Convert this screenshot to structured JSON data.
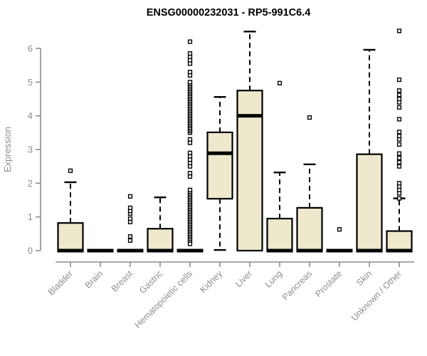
{
  "chart_data": {
    "type": "boxplot",
    "title": "ENSG00000232031 - RP5-991C6.4",
    "ylabel": "Expression",
    "xlabel": "",
    "ylim": [
      0,
      6
    ],
    "yticks": [
      "0",
      "1",
      "2",
      "3",
      "4",
      "5",
      "6"
    ],
    "legend": "none",
    "grid": false,
    "categories": [
      "Bladder",
      "Brain",
      "Breast",
      "Gastric",
      "Hematopoietic cells",
      "Kidney",
      "Liver",
      "Lung",
      "Pancreas",
      "Prostate",
      "Skin",
      "Unknown / Other"
    ],
    "boxes": [
      {
        "label": "Bladder",
        "low": 0,
        "q1": 0,
        "median": 0,
        "q3": 0.82,
        "high": 2.03,
        "outliers": [
          2.37
        ]
      },
      {
        "label": "Brain",
        "low": 0,
        "q1": 0,
        "median": 0,
        "q3": 0,
        "high": 0,
        "outliers": []
      },
      {
        "label": "Breast",
        "low": 0,
        "q1": 0,
        "median": 0,
        "q3": 0,
        "high": 0,
        "outliers": [
          0.3,
          0.42,
          0.85,
          0.95,
          1.1,
          1.18,
          1.27,
          1.61
        ]
      },
      {
        "label": "Gastric",
        "low": 0,
        "q1": 0,
        "median": 0,
        "q3": 0.65,
        "high": 1.58,
        "outliers": []
      },
      {
        "label": "Hematopoietic cells",
        "low": 0,
        "q1": 0,
        "median": 0,
        "q3": 0,
        "high": 0,
        "outliers": [
          0.2,
          0.3,
          0.35,
          0.4,
          0.45,
          0.5,
          0.55,
          0.6,
          0.65,
          0.7,
          0.75,
          0.8,
          0.85,
          0.9,
          0.95,
          1.0,
          1.05,
          1.1,
          1.15,
          1.2,
          1.25,
          1.3,
          1.35,
          1.4,
          1.45,
          1.5,
          1.55,
          1.6,
          1.65,
          1.7,
          1.75,
          1.8,
          2.2,
          2.3,
          2.5,
          2.6,
          2.7,
          2.8,
          2.9,
          3.2,
          3.3,
          3.5,
          3.55,
          3.6,
          3.65,
          3.7,
          3.75,
          3.8,
          3.85,
          3.9,
          3.95,
          4.0,
          4.05,
          4.1,
          4.15,
          4.2,
          4.25,
          4.3,
          4.35,
          4.4,
          4.45,
          4.5,
          4.55,
          4.6,
          4.65,
          4.7,
          4.75,
          4.8,
          4.85,
          4.9,
          4.95,
          5.0,
          5.2,
          5.3,
          5.55,
          5.65,
          5.75,
          5.85,
          6.2
        ],
        "note": "flat box at 0 with dense outlier column"
      },
      {
        "label": "Kidney",
        "low": 0.02,
        "q1": 1.54,
        "median": 2.89,
        "q3": 3.51,
        "high": 4.56,
        "outliers": []
      },
      {
        "label": "Liver",
        "low": 0,
        "q1": 0,
        "median": 4.0,
        "q3": 4.75,
        "high": 6.5,
        "outliers": []
      },
      {
        "label": "Lung",
        "low": 0,
        "q1": 0,
        "median": 0,
        "q3": 0.95,
        "high": 2.32,
        "outliers": [
          4.97
        ]
      },
      {
        "label": "Pancreas",
        "low": 0,
        "q1": 0,
        "median": 0,
        "q3": 1.27,
        "high": 2.56,
        "outliers": [
          3.95
        ]
      },
      {
        "label": "Prostate",
        "low": 0,
        "q1": 0,
        "median": 0,
        "q3": 0,
        "high": 0,
        "outliers": [
          0.63
        ]
      },
      {
        "label": "Skin",
        "low": 0,
        "q1": 0,
        "median": 0,
        "q3": 2.86,
        "high": 5.96,
        "outliers": []
      },
      {
        "label": "Unknown / Other",
        "low": 0,
        "q1": 0,
        "median": 0,
        "q3": 0.58,
        "high": 1.55,
        "outliers": [
          1.55,
          1.7,
          1.8,
          1.9,
          2.0,
          2.5,
          2.62,
          2.75,
          2.88,
          3.15,
          3.3,
          3.4,
          3.52,
          3.9,
          4.25,
          4.4,
          4.5,
          4.62,
          4.75,
          5.07,
          6.52
        ]
      }
    ],
    "colors": {
      "box_fill": "#EEE8CD",
      "box_stroke": "#000000",
      "median": "#000000",
      "whisker": "#000000",
      "outlier_stroke": "#000000",
      "outlier_fill": "#ffffff",
      "axis": "#8c8c8c",
      "tick_text": "#8e8e8e",
      "title": "#000000",
      "background": "#ffffff"
    }
  }
}
